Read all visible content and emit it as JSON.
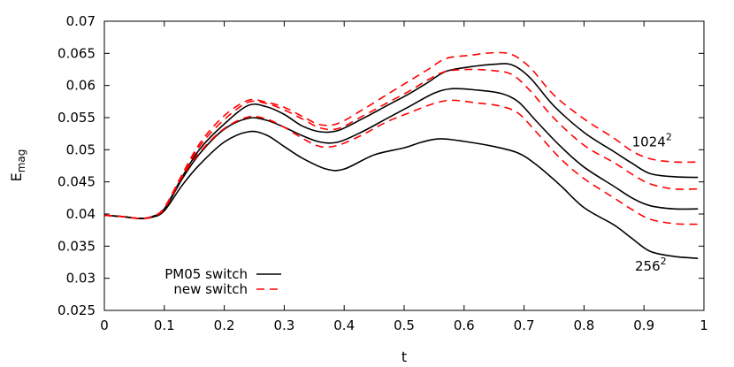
{
  "chart_data": {
    "type": "line",
    "title": "",
    "xlabel": "t",
    "ylabel": {
      "base": "E",
      "sub": "mag"
    },
    "xlim": [
      0,
      1
    ],
    "ylim": [
      0.025,
      0.07
    ],
    "xticks": [
      "0",
      "0.1",
      "0.2",
      "0.3",
      "0.4",
      "0.5",
      "0.6",
      "0.7",
      "0.8",
      "0.9",
      "1"
    ],
    "yticks": [
      "0.025",
      "0.03",
      "0.035",
      "0.04",
      "0.045",
      "0.05",
      "0.055",
      "0.06",
      "0.065",
      "0.07"
    ],
    "grid": false,
    "legend": {
      "position": "bottom-left",
      "entries": [
        {
          "label": "PM05 switch",
          "color": "#000000",
          "dash": "solid"
        },
        {
          "label": "new switch",
          "color": "#ff0000",
          "dash": "dashed"
        }
      ]
    },
    "annotations": [
      {
        "text": "1024",
        "sup": "2",
        "x": 0.88,
        "y": 0.0505
      },
      {
        "text": "256",
        "sup": "2",
        "x": 0.885,
        "y": 0.0312
      }
    ],
    "series": [
      {
        "legend": "PM05 switch",
        "color": "#000000",
        "dash": "solid",
        "points": [
          [
            0,
            0.0398
          ],
          [
            0.03,
            0.0396
          ],
          [
            0.06,
            0.0393
          ],
          [
            0.08,
            0.0395
          ],
          [
            0.1,
            0.0405
          ],
          [
            0.13,
            0.0445
          ],
          [
            0.16,
            0.0478
          ],
          [
            0.2,
            0.0512
          ],
          [
            0.24,
            0.0528
          ],
          [
            0.27,
            0.0523
          ],
          [
            0.3,
            0.0505
          ],
          [
            0.33,
            0.0487
          ],
          [
            0.37,
            0.047
          ],
          [
            0.4,
            0.047
          ],
          [
            0.45,
            0.0492
          ],
          [
            0.5,
            0.0503
          ],
          [
            0.53,
            0.0512
          ],
          [
            0.56,
            0.0517
          ],
          [
            0.6,
            0.0513
          ],
          [
            0.65,
            0.0505
          ],
          [
            0.69,
            0.0495
          ],
          [
            0.72,
            0.0477
          ],
          [
            0.76,
            0.0445
          ],
          [
            0.8,
            0.041
          ],
          [
            0.85,
            0.0383
          ],
          [
            0.88,
            0.0362
          ],
          [
            0.91,
            0.0342
          ],
          [
            0.95,
            0.0334
          ],
          [
            0.99,
            0.0331
          ]
        ]
      },
      {
        "legend": "PM05 switch",
        "color": "#000000",
        "dash": "solid",
        "points": [
          [
            0,
            0.0398
          ],
          [
            0.03,
            0.0396
          ],
          [
            0.06,
            0.0393
          ],
          [
            0.08,
            0.0396
          ],
          [
            0.1,
            0.0407
          ],
          [
            0.13,
            0.0455
          ],
          [
            0.16,
            0.0495
          ],
          [
            0.2,
            0.0532
          ],
          [
            0.24,
            0.0549
          ],
          [
            0.27,
            0.0546
          ],
          [
            0.3,
            0.0535
          ],
          [
            0.33,
            0.0522
          ],
          [
            0.36,
            0.0512
          ],
          [
            0.39,
            0.0512
          ],
          [
            0.43,
            0.0528
          ],
          [
            0.47,
            0.0548
          ],
          [
            0.51,
            0.0568
          ],
          [
            0.55,
            0.0588
          ],
          [
            0.58,
            0.0595
          ],
          [
            0.62,
            0.0593
          ],
          [
            0.66,
            0.0588
          ],
          [
            0.69,
            0.0575
          ],
          [
            0.72,
            0.0545
          ],
          [
            0.76,
            0.0506
          ],
          [
            0.8,
            0.0473
          ],
          [
            0.85,
            0.0443
          ],
          [
            0.88,
            0.0425
          ],
          [
            0.91,
            0.0413
          ],
          [
            0.95,
            0.0408
          ],
          [
            0.99,
            0.0408
          ]
        ]
      },
      {
        "legend": "PM05 switch",
        "color": "#000000",
        "dash": "solid",
        "points": [
          [
            0,
            0.0398
          ],
          [
            0.03,
            0.0396
          ],
          [
            0.06,
            0.0393
          ],
          [
            0.08,
            0.0396
          ],
          [
            0.1,
            0.0408
          ],
          [
            0.13,
            0.0458
          ],
          [
            0.16,
            0.0502
          ],
          [
            0.2,
            0.054
          ],
          [
            0.24,
            0.0569
          ],
          [
            0.27,
            0.0567
          ],
          [
            0.3,
            0.0555
          ],
          [
            0.33,
            0.0537
          ],
          [
            0.36,
            0.0528
          ],
          [
            0.39,
            0.053
          ],
          [
            0.43,
            0.0548
          ],
          [
            0.47,
            0.0568
          ],
          [
            0.51,
            0.0588
          ],
          [
            0.54,
            0.0605
          ],
          [
            0.57,
            0.0622
          ],
          [
            0.61,
            0.0629
          ],
          [
            0.65,
            0.0633
          ],
          [
            0.68,
            0.0632
          ],
          [
            0.71,
            0.0612
          ],
          [
            0.75,
            0.0568
          ],
          [
            0.8,
            0.0527
          ],
          [
            0.85,
            0.0497
          ],
          [
            0.88,
            0.0479
          ],
          [
            0.91,
            0.0463
          ],
          [
            0.95,
            0.0458
          ],
          [
            0.99,
            0.0457
          ]
        ]
      },
      {
        "legend": "new switch",
        "color": "#ff0000",
        "dash": "dashed",
        "points": [
          [
            0,
            0.0398
          ],
          [
            0.03,
            0.0396
          ],
          [
            0.06,
            0.0393
          ],
          [
            0.08,
            0.0396
          ],
          [
            0.1,
            0.0408
          ],
          [
            0.13,
            0.0458
          ],
          [
            0.16,
            0.0497
          ],
          [
            0.2,
            0.0533
          ],
          [
            0.24,
            0.0551
          ],
          [
            0.27,
            0.0548
          ],
          [
            0.3,
            0.0535
          ],
          [
            0.33,
            0.0518
          ],
          [
            0.36,
            0.0505
          ],
          [
            0.39,
            0.0507
          ],
          [
            0.43,
            0.0523
          ],
          [
            0.47,
            0.0543
          ],
          [
            0.51,
            0.0558
          ],
          [
            0.55,
            0.0572
          ],
          [
            0.58,
            0.0577
          ],
          [
            0.62,
            0.0573
          ],
          [
            0.66,
            0.0568
          ],
          [
            0.69,
            0.0557
          ],
          [
            0.72,
            0.0528
          ],
          [
            0.76,
            0.0487
          ],
          [
            0.8,
            0.0455
          ],
          [
            0.85,
            0.0425
          ],
          [
            0.88,
            0.0407
          ],
          [
            0.91,
            0.0392
          ],
          [
            0.95,
            0.0385
          ],
          [
            0.99,
            0.0384
          ]
        ]
      },
      {
        "legend": "new switch",
        "color": "#ff0000",
        "dash": "dashed",
        "points": [
          [
            0,
            0.0398
          ],
          [
            0.03,
            0.0396
          ],
          [
            0.06,
            0.0393
          ],
          [
            0.08,
            0.0396
          ],
          [
            0.1,
            0.0409
          ],
          [
            0.13,
            0.046
          ],
          [
            0.16,
            0.0507
          ],
          [
            0.2,
            0.0547
          ],
          [
            0.24,
            0.0574
          ],
          [
            0.27,
            0.0572
          ],
          [
            0.3,
            0.0562
          ],
          [
            0.33,
            0.0548
          ],
          [
            0.36,
            0.0534
          ],
          [
            0.39,
            0.0533
          ],
          [
            0.43,
            0.0552
          ],
          [
            0.47,
            0.0572
          ],
          [
            0.51,
            0.0592
          ],
          [
            0.54,
            0.0609
          ],
          [
            0.57,
            0.0622
          ],
          [
            0.61,
            0.0625
          ],
          [
            0.65,
            0.0623
          ],
          [
            0.68,
            0.0617
          ],
          [
            0.71,
            0.0592
          ],
          [
            0.75,
            0.0549
          ],
          [
            0.8,
            0.0507
          ],
          [
            0.85,
            0.048
          ],
          [
            0.88,
            0.0462
          ],
          [
            0.91,
            0.0447
          ],
          [
            0.95,
            0.0439
          ],
          [
            0.99,
            0.0439
          ]
        ]
      },
      {
        "legend": "new switch",
        "color": "#ff0000",
        "dash": "dashed",
        "points": [
          [
            0,
            0.0398
          ],
          [
            0.03,
            0.0396
          ],
          [
            0.06,
            0.0393
          ],
          [
            0.08,
            0.0396
          ],
          [
            0.1,
            0.041
          ],
          [
            0.13,
            0.0462
          ],
          [
            0.16,
            0.0511
          ],
          [
            0.2,
            0.0553
          ],
          [
            0.24,
            0.0577
          ],
          [
            0.27,
            0.0574
          ],
          [
            0.3,
            0.0566
          ],
          [
            0.33,
            0.0552
          ],
          [
            0.36,
            0.0539
          ],
          [
            0.39,
            0.0541
          ],
          [
            0.43,
            0.0562
          ],
          [
            0.47,
            0.0585
          ],
          [
            0.51,
            0.0608
          ],
          [
            0.54,
            0.0625
          ],
          [
            0.57,
            0.0642
          ],
          [
            0.61,
            0.0647
          ],
          [
            0.65,
            0.0651
          ],
          [
            0.68,
            0.0648
          ],
          [
            0.71,
            0.0628
          ],
          [
            0.75,
            0.0585
          ],
          [
            0.8,
            0.0548
          ],
          [
            0.85,
            0.0518
          ],
          [
            0.88,
            0.0498
          ],
          [
            0.91,
            0.0486
          ],
          [
            0.95,
            0.0481
          ],
          [
            0.99,
            0.0481
          ]
        ]
      }
    ]
  }
}
